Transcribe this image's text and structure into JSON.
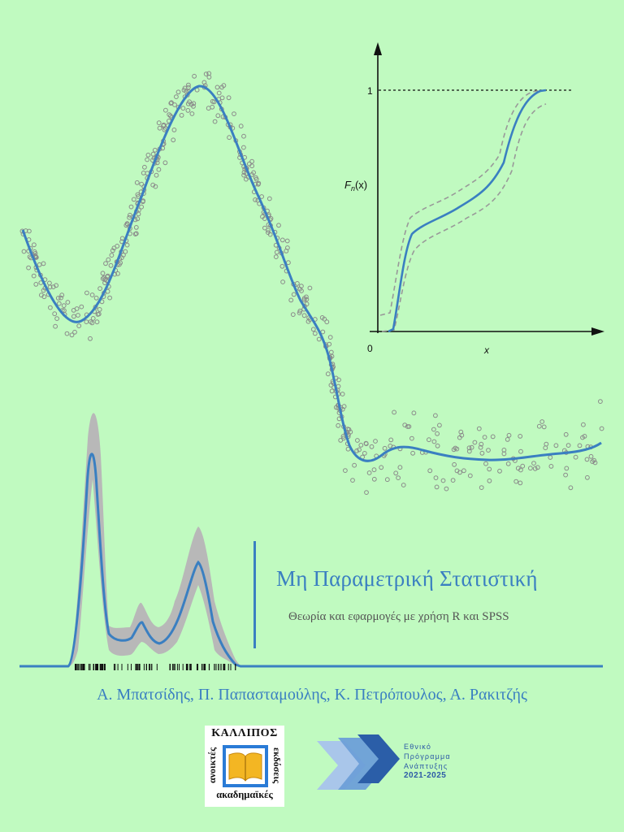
{
  "cover": {
    "title": "Μη Παραμετρική Στατιστική",
    "subtitle": "Θεωρία και εφαρμογές με χρήση R και SPSS",
    "authors": "Α. Μπατσίδης, Π. Παπασταμούλης, Κ. Πετρόπουλος, Α. Ρακιτζής"
  },
  "ecdf_plot": {
    "y_tick_one": "1",
    "origin_label": "0",
    "x_label": "x",
    "y_label_main": "F",
    "y_label_sub": "n",
    "y_label_arg": "(x)"
  },
  "publisher_logo": {
    "top_text": "ΚΑΛΛΙΠΟΣ",
    "left_text": "ανοικτές",
    "right_text": "εκδόσεις",
    "bottom_text": "ακαδημαϊκές"
  },
  "program_logo": {
    "line1": "Εθνικό",
    "line2": "Πρόγραμμα",
    "line3": "Ανάπτυξης",
    "years": "2021-2025"
  },
  "colors": {
    "background": "#c0fac0",
    "accent_blue": "#3a7fc1",
    "point_gray": "#8a8a8a",
    "band_gray": "#b8b8b8"
  }
}
